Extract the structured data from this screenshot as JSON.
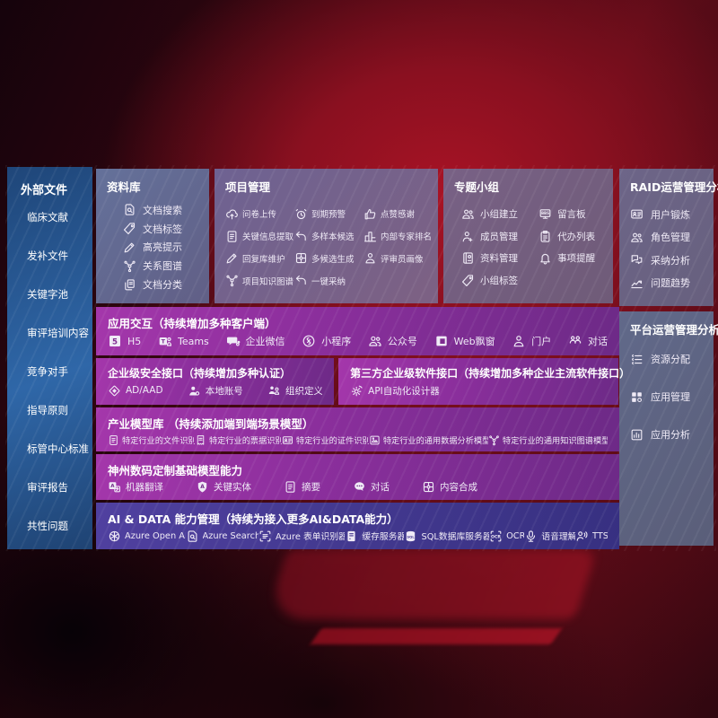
{
  "palette": {
    "background_red": "#8e1120",
    "sidebar_blue": "#2f67a8",
    "row_magenta": "#8c2f9d",
    "row_indigo": "#453a92",
    "panel_slate": "#67607e"
  },
  "sidebar": {
    "title": "外部文件",
    "items": [
      "临床文献",
      "发补文件",
      "关键字池",
      "审评培训内容",
      "竞争对手",
      "指导原则",
      "标管中心标准",
      "审评报告",
      "共性问题"
    ]
  },
  "top_blocks": [
    {
      "key": "repository",
      "title": "资料库",
      "cols": 1,
      "items": [
        {
          "icon": "doc-search",
          "label": "文档搜索"
        },
        {
          "icon": "tag",
          "label": "文档标签"
        },
        {
          "icon": "highlight-pen",
          "label": "高亮提示"
        },
        {
          "icon": "knowledge-graph",
          "label": "关系图谱"
        },
        {
          "icon": "doc-copies",
          "label": "文档分类"
        }
      ]
    },
    {
      "key": "project-management",
      "title": "项目管理",
      "cols": 3,
      "items": [
        {
          "icon": "cloud-upload",
          "label": "问卷上传"
        },
        {
          "icon": "alarm",
          "label": "到期预警"
        },
        {
          "icon": "thumbs-up",
          "label": "点赞感谢"
        },
        {
          "icon": "doc-extract",
          "label": "关键信息提取"
        },
        {
          "icon": "reply-arrow",
          "label": "多样本候选"
        },
        {
          "icon": "ranking-podium",
          "label": "内部专家排名"
        },
        {
          "icon": "pencil",
          "label": "回复库维护"
        },
        {
          "icon": "puzzle",
          "label": "多候选生成"
        },
        {
          "icon": "person",
          "label": "评审员画像"
        },
        {
          "icon": "knowledge-graph",
          "label": "项目知识图谱"
        },
        {
          "icon": "reply-arrow",
          "label": "一键采纳"
        }
      ]
    },
    {
      "key": "topic-groups",
      "title": "专题小组",
      "cols": 2,
      "items": [
        {
          "icon": "people",
          "label": "小组建立"
        },
        {
          "icon": "bbs-board",
          "label": "留言板"
        },
        {
          "icon": "person-add",
          "label": "成员管理"
        },
        {
          "icon": "clipboard-list",
          "label": "代办列表"
        },
        {
          "icon": "resource-book",
          "label": "资料管理"
        },
        {
          "icon": "bell",
          "label": "事项提醒"
        },
        {
          "icon": "tag",
          "label": "小组标签"
        }
      ]
    }
  ],
  "right_blocks": [
    {
      "key": "raid-analysis",
      "title": "RAID运营管理分析",
      "items": [
        {
          "icon": "id-card",
          "label": "用户锻炼"
        },
        {
          "icon": "people",
          "label": "角色管理"
        },
        {
          "icon": "qa-chat",
          "label": "采纳分析"
        },
        {
          "icon": "trend-chart",
          "label": "问题趋势"
        }
      ]
    },
    {
      "key": "platform-analysis",
      "title": "平台运营管理分析",
      "items": [
        {
          "icon": "config-list",
          "label": "资源分配"
        },
        {
          "icon": "app-grid",
          "label": "应用管理"
        },
        {
          "icon": "app-chart",
          "label": "应用分析"
        }
      ]
    }
  ],
  "rows": [
    {
      "key": "app-interaction",
      "theme": "magenta",
      "blocks": [
        {
          "title": "应用交互（持续增加多种客户端）",
          "items": [
            {
              "icon": "h5-badge",
              "label": "H5"
            },
            {
              "icon": "teams",
              "label": "Teams"
            },
            {
              "icon": "wechat-work",
              "label": "企业微信"
            },
            {
              "icon": "mini-program",
              "label": "小程序"
            },
            {
              "icon": "official-account",
              "label": "公众号"
            },
            {
              "icon": "web-window",
              "label": "Web飘窗"
            },
            {
              "icon": "portal-person",
              "label": "门户"
            },
            {
              "icon": "dialog-people",
              "label": "对话"
            }
          ]
        }
      ]
    },
    {
      "key": "interfaces",
      "theme": "magenta",
      "blocks": [
        {
          "title": "企业级安全接口（持续增加多种认证）",
          "flex": 46,
          "items": [
            {
              "icon": "ad-diamond",
              "label": "AD/AAD"
            },
            {
              "icon": "local-account",
              "label": "本地账号"
            },
            {
              "icon": "org-define",
              "label": "组织定义"
            }
          ]
        },
        {
          "title": "第三方企业级软件接口（持续增加多种企业主流软件接口）",
          "flex": 54,
          "items": [
            {
              "icon": "api-gear",
              "label": "API自动化设计器"
            }
          ]
        }
      ]
    },
    {
      "key": "industry-models",
      "theme": "magenta",
      "blocks": [
        {
          "title": "产业模型库 （持续添加端到端场景模型）",
          "items": [
            {
              "icon": "doc-file",
              "label": "特定行业的文件识别"
            },
            {
              "icon": "receipt",
              "label": "特定行业的票据识别"
            },
            {
              "icon": "id-card",
              "label": "特定行业的证件识别"
            },
            {
              "icon": "data-image",
              "label": "特定行业的通用数据分析模型"
            },
            {
              "icon": "knowledge-graph",
              "label": "特定行业的通用知识图谱模型"
            }
          ]
        }
      ]
    },
    {
      "key": "base-models",
      "theme": "magenta",
      "blocks": [
        {
          "title": "神州数码定制基础模型能力",
          "items": [
            {
              "icon": "translate-badge",
              "label": "机器翻译"
            },
            {
              "icon": "entity-shield",
              "label": "关键实体"
            },
            {
              "icon": "summary-doc",
              "label": "摘要"
            },
            {
              "icon": "chat-bubble",
              "label": "对话"
            },
            {
              "icon": "compose-puzzle",
              "label": "内容合成"
            }
          ]
        }
      ]
    },
    {
      "key": "ai-data",
      "theme": "indigo",
      "blocks": [
        {
          "title": "AI & DATA 能力管理（持续为接入更多AI&DATA能力）",
          "items": [
            {
              "icon": "openai",
              "label": "Azure Open AI"
            },
            {
              "icon": "doc-search",
              "label": "Azure Search"
            },
            {
              "icon": "form-recognizer",
              "label": "Azure 表单识别器"
            },
            {
              "icon": "cache-server",
              "label": "缓存服务器"
            },
            {
              "icon": "sql-database",
              "label": "SQL数据库服务器"
            },
            {
              "icon": "ocr-badge",
              "label": "OCR"
            },
            {
              "icon": "speech-mic",
              "label": "语音理解"
            },
            {
              "icon": "tts-person",
              "label": "TTS"
            }
          ]
        }
      ]
    }
  ]
}
